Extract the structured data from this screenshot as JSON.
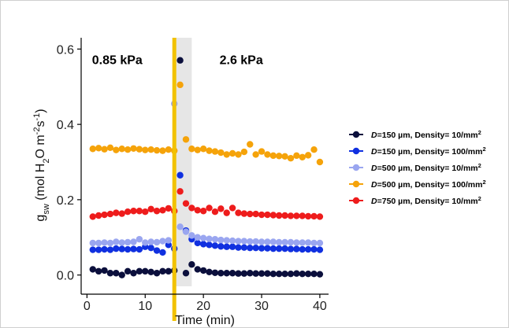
{
  "chart_data": {
    "type": "scatter",
    "xlabel": "Time (min)",
    "ylabel": {
      "main": "g",
      "sub": "sw",
      "open": " (mol H",
      "h2o_sub": "2",
      "mid1": "O m",
      "sup1": "-2",
      "mid2": "s",
      "sup2": "-1",
      "close": ")"
    },
    "xlim": [
      -1,
      41.5
    ],
    "ylim": [
      -0.03,
      0.63
    ],
    "xticks": [
      0,
      10,
      20,
      30,
      40
    ],
    "yticks": [
      0.0,
      0.2,
      0.4,
      0.6
    ],
    "ytick_labels": [
      "0.0",
      "0.2",
      "0.4",
      "0.6"
    ],
    "xtick_labels": [
      "0",
      "10",
      "20",
      "30",
      "40"
    ],
    "grid": false,
    "legend_position": "right",
    "phase_labels": [
      {
        "text": "0.85 kPa",
        "x": 5.2,
        "y": 0.56
      },
      {
        "text": "2.6 kPa",
        "x": 26.5,
        "y": 0.56
      }
    ],
    "transition_line": {
      "x": 15,
      "color": "#f2c200"
    },
    "transition_band": {
      "x0": 15,
      "x1": 18,
      "color": "#dcdcdc"
    },
    "series": [
      {
        "name": {
          "prefix": "D",
          "value": "=150 µm,  Density= 10/mm",
          "sup": "2"
        },
        "color": "#0b0f3c",
        "x": [
          1,
          2,
          3,
          4,
          5,
          6,
          7,
          8,
          9,
          10,
          11,
          12,
          13,
          14,
          15,
          16,
          17,
          18,
          19,
          20,
          21,
          22,
          23,
          24,
          25,
          26,
          27,
          28,
          29,
          30,
          31,
          32,
          33,
          34,
          35,
          36,
          37,
          38,
          39,
          40
        ],
        "y": [
          0.015,
          0.01,
          0.012,
          0.005,
          0.005,
          0.0,
          0.01,
          0.005,
          0.01,
          0.01,
          0.008,
          0.005,
          0.01,
          0.01,
          0.012,
          0.57,
          0.005,
          0.028,
          0.015,
          0.012,
          0.008,
          0.006,
          0.005,
          0.005,
          0.005,
          0.004,
          0.004,
          0.005,
          0.004,
          0.004,
          0.004,
          0.003,
          0.003,
          0.003,
          0.003,
          0.004,
          0.003,
          0.003,
          0.003,
          0.002
        ]
      },
      {
        "name": {
          "prefix": "D",
          "value": "=150 µm,  Density= 100/mm",
          "sup": "2"
        },
        "color": "#1030e0",
        "x": [
          1,
          2,
          3,
          4,
          5,
          6,
          7,
          8,
          9,
          10,
          11,
          12,
          13,
          14,
          15,
          16,
          17,
          18,
          19,
          20,
          21,
          22,
          23,
          24,
          25,
          26,
          27,
          28,
          29,
          30,
          31,
          32,
          33,
          34,
          35,
          36,
          37,
          38,
          39,
          40
        ],
        "y": [
          0.067,
          0.067,
          0.068,
          0.067,
          0.07,
          0.069,
          0.068,
          0.069,
          0.068,
          0.075,
          0.072,
          0.065,
          0.06,
          0.08,
          0.07,
          0.265,
          0.118,
          0.095,
          0.085,
          0.082,
          0.08,
          0.078,
          0.076,
          0.075,
          0.075,
          0.073,
          0.073,
          0.072,
          0.072,
          0.071,
          0.071,
          0.07,
          0.07,
          0.07,
          0.069,
          0.069,
          0.068,
          0.068,
          0.068,
          0.067
        ]
      },
      {
        "name": {
          "prefix": "D",
          "value": "=500 µm,  Density= 10/mm",
          "sup": "2"
        },
        "color": "#9aa6f0",
        "x": [
          1,
          2,
          3,
          4,
          5,
          6,
          7,
          8,
          9,
          10,
          11,
          12,
          13,
          14,
          15,
          16,
          17,
          18,
          19,
          20,
          21,
          22,
          23,
          24,
          25,
          26,
          27,
          28,
          29,
          30,
          31,
          32,
          33,
          34,
          35,
          36,
          37,
          38,
          39,
          40
        ],
        "y": [
          0.085,
          0.085,
          0.086,
          0.085,
          0.088,
          0.086,
          0.087,
          0.088,
          0.095,
          0.086,
          0.088,
          0.087,
          0.09,
          0.092,
          0.455,
          0.128,
          0.115,
          0.105,
          0.1,
          0.098,
          0.096,
          0.095,
          0.093,
          0.092,
          0.091,
          0.09,
          0.09,
          0.089,
          0.089,
          0.088,
          0.088,
          0.088,
          0.087,
          0.087,
          0.087,
          0.086,
          0.086,
          0.086,
          0.085,
          0.085
        ]
      },
      {
        "name": {
          "prefix": "D",
          "value": "=500 µm,  Density= 100/mm",
          "sup": "2"
        },
        "color": "#f5a30a",
        "x": [
          1,
          2,
          3,
          4,
          5,
          6,
          7,
          8,
          9,
          10,
          11,
          12,
          13,
          14,
          15,
          16,
          17,
          18,
          19,
          20,
          21,
          22,
          23,
          24,
          25,
          26,
          27,
          28,
          29,
          30,
          31,
          32,
          33,
          34,
          35,
          36,
          37,
          38,
          39,
          40
        ],
        "y": [
          0.335,
          0.337,
          0.334,
          0.338,
          0.332,
          0.335,
          0.333,
          0.336,
          0.334,
          0.332,
          0.333,
          0.331,
          0.33,
          0.333,
          0.33,
          0.505,
          0.36,
          0.335,
          0.332,
          0.335,
          0.33,
          0.328,
          0.325,
          0.32,
          0.323,
          0.32,
          0.327,
          0.347,
          0.32,
          0.328,
          0.32,
          0.317,
          0.316,
          0.315,
          0.31,
          0.317,
          0.313,
          0.318,
          0.333,
          0.3
        ]
      },
      {
        "name": {
          "prefix": "D",
          "value": "=750 µm,  Density= 10/mm",
          "sup": "2"
        },
        "color": "#ee1c1c",
        "x": [
          1,
          2,
          3,
          4,
          5,
          6,
          7,
          8,
          9,
          10,
          11,
          12,
          13,
          14,
          15,
          16,
          17,
          18,
          19,
          20,
          21,
          22,
          23,
          24,
          25,
          26,
          27,
          28,
          29,
          30,
          31,
          32,
          33,
          34,
          35,
          36,
          37,
          38,
          39,
          40
        ],
        "y": [
          0.155,
          0.158,
          0.16,
          0.162,
          0.165,
          0.163,
          0.168,
          0.17,
          0.17,
          0.168,
          0.175,
          0.17,
          0.172,
          0.177,
          0.17,
          0.222,
          0.19,
          0.178,
          0.172,
          0.17,
          0.178,
          0.168,
          0.176,
          0.165,
          0.178,
          0.165,
          0.163,
          0.162,
          0.162,
          0.16,
          0.16,
          0.159,
          0.158,
          0.158,
          0.157,
          0.157,
          0.157,
          0.156,
          0.156,
          0.155
        ]
      }
    ]
  }
}
